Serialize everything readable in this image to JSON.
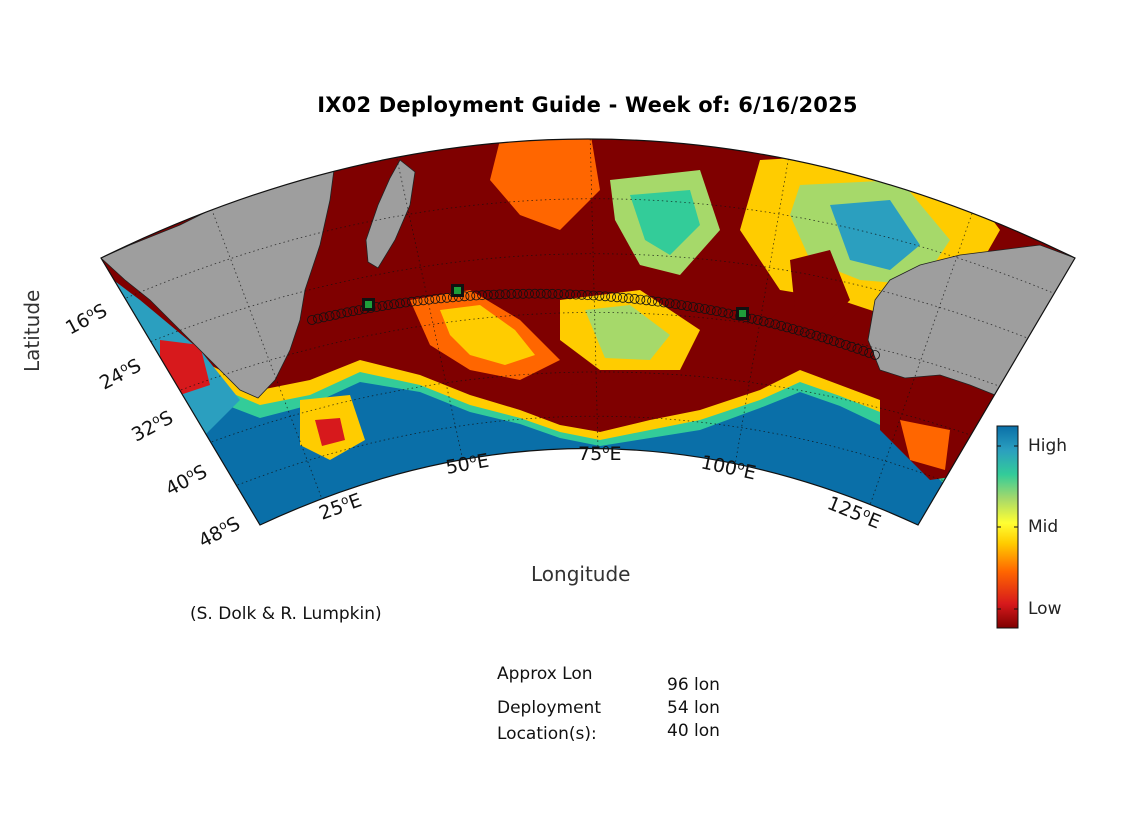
{
  "title": "IX02 Deployment Guide - Week of: 6/16/2025",
  "axis": {
    "xlabel": "Longitude",
    "ylabel": "Latitude"
  },
  "lon_ticks": [
    {
      "deg": "25",
      "hemi": "E"
    },
    {
      "deg": "50",
      "hemi": "E"
    },
    {
      "deg": "75",
      "hemi": "E"
    },
    {
      "deg": "100",
      "hemi": "E"
    },
    {
      "deg": "125",
      "hemi": "E"
    }
  ],
  "lat_ticks": [
    {
      "deg": "16",
      "hemi": "S"
    },
    {
      "deg": "24",
      "hemi": "S"
    },
    {
      "deg": "32",
      "hemi": "S"
    },
    {
      "deg": "40",
      "hemi": "S"
    },
    {
      "deg": "48",
      "hemi": "S"
    }
  ],
  "colorbar": {
    "high": "High",
    "mid": "Mid",
    "low": "Low",
    "colors": [
      "#7f0000",
      "#d7191c",
      "#ff6600",
      "#ffcc00",
      "#ffff33",
      "#a6d96a",
      "#33cc99",
      "#2b9fbf",
      "#0a6fa8"
    ]
  },
  "credit": "(S. Dolk & R. Lumpkin)",
  "deployment_info": {
    "label_line1": "Approx Lon",
    "label_line2": "Deployment",
    "label_line3": "Location(s):",
    "values": [
      "96 lon",
      "54 lon",
      "40 lon"
    ]
  },
  "colors": {
    "land": "#9e9e9e",
    "ocean_low": "#7f0000",
    "ocean_high": "#0a6fa8",
    "marker": "#1f9e3a"
  }
}
